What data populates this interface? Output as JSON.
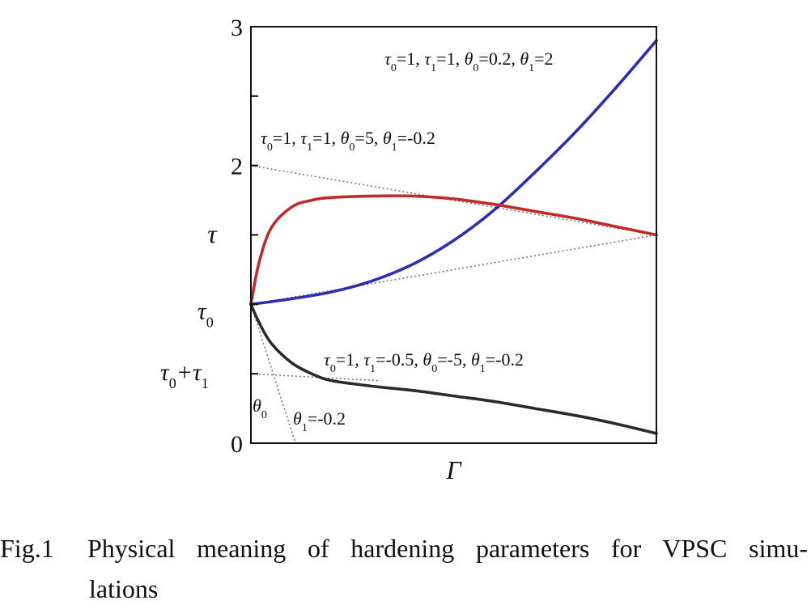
{
  "chart_data": {
    "type": "line",
    "xlabel": "Γ",
    "ylabel": "τ",
    "ylim": [
      0,
      3
    ],
    "xlim": [
      0,
      1
    ],
    "grid": false,
    "y_ticks": [
      {
        "value": 3,
        "label": "3"
      },
      {
        "value": 2,
        "label": "2"
      },
      {
        "value": 0,
        "label": "0"
      }
    ],
    "y_minor_ticks": [
      2.5,
      1.5,
      0.5
    ],
    "tau0_label": {
      "value": 1,
      "base": "τ",
      "sub": "0"
    },
    "tau0_tau1_label": {
      "value": 0.5,
      "parts": [
        "τ",
        "0",
        "+τ",
        "1"
      ]
    },
    "series": [
      {
        "color": "#2b2fb0",
        "x": [
          0,
          0.1,
          0.2,
          0.3,
          0.4,
          0.5,
          0.6,
          0.7,
          0.8,
          0.9,
          1.0
        ],
        "y": [
          1.0,
          1.04,
          1.09,
          1.17,
          1.29,
          1.46,
          1.68,
          1.95,
          2.24,
          2.56,
          2.9
        ],
        "annotation": [
          "τ",
          "0",
          "=1, ",
          "τ",
          "1",
          "=1, ",
          "θ",
          "0",
          "=0.2, ",
          "θ",
          "1",
          "=2"
        ]
      },
      {
        "color": "#c32a2a",
        "x": [
          0,
          0.02,
          0.05,
          0.1,
          0.15,
          0.2,
          0.3,
          0.4,
          0.5,
          0.6,
          0.7,
          0.8,
          0.9,
          1.0
        ],
        "y": [
          1.0,
          1.3,
          1.55,
          1.7,
          1.75,
          1.77,
          1.78,
          1.78,
          1.76,
          1.72,
          1.67,
          1.62,
          1.56,
          1.5
        ],
        "annotation": [
          "τ",
          "0",
          "=1, ",
          "τ",
          "1",
          "=1, ",
          "θ",
          "0",
          "=5, ",
          "θ",
          "1",
          "=-0.2"
        ]
      },
      {
        "color": "#2a2a2a",
        "x": [
          0,
          0.02,
          0.05,
          0.1,
          0.15,
          0.2,
          0.3,
          0.4,
          0.5,
          0.6,
          0.7,
          0.8,
          0.9,
          1.0
        ],
        "y": [
          1.0,
          0.87,
          0.72,
          0.58,
          0.5,
          0.45,
          0.41,
          0.38,
          0.34,
          0.3,
          0.25,
          0.2,
          0.14,
          0.07
        ],
        "annotation": [
          "τ",
          "0",
          "=1, ",
          "τ",
          "1",
          "=-0.5, ",
          "θ",
          "0",
          "=-5, ",
          "θ",
          "1",
          "=-0.2"
        ]
      }
    ],
    "asymptotes": [
      {
        "x": [
          0,
          1
        ],
        "y": [
          2.0,
          1.5
        ]
      },
      {
        "x": [
          0,
          1
        ],
        "y": [
          1.0,
          1.5
        ]
      },
      {
        "x": [
          0,
          0.32
        ],
        "y": [
          0.5,
          0.45
        ]
      },
      {
        "x": [
          0,
          0.11
        ],
        "y": [
          1.0,
          0.0
        ]
      }
    ],
    "slope_labels": [
      {
        "parts": [
          "θ",
          "0"
        ]
      },
      {
        "parts": [
          "θ",
          "1",
          "=-0.2"
        ]
      }
    ]
  },
  "caption": {
    "number": "Fig.1",
    "line1": "Physical meaning of hardening parameters for VPSC simu-",
    "line2": "lations"
  }
}
